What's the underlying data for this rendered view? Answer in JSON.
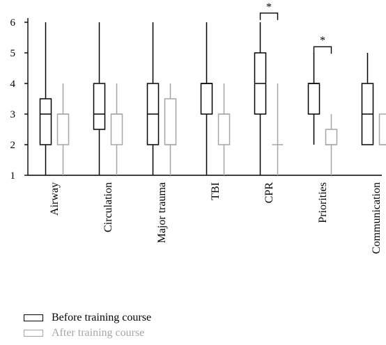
{
  "chart_data": {
    "type": "boxplot",
    "title": "",
    "xlabel": "",
    "ylabel": "",
    "ylim": [
      1,
      6
    ],
    "yticks": [
      1,
      2,
      3,
      4,
      5,
      6
    ],
    "categories": [
      "Airway",
      "Circulation",
      "Major trauma",
      "TBI",
      "CPR",
      "Priorities",
      "Communication"
    ],
    "series": [
      {
        "name": "Before training course",
        "color": "#000000",
        "boxes": [
          {
            "min": 1,
            "q1": 2,
            "median": 3,
            "q3": 3.5,
            "max": 6
          },
          {
            "min": 1,
            "q1": 2.5,
            "median": 3,
            "q3": 4,
            "max": 6
          },
          {
            "min": 1,
            "q1": 2,
            "median": 3,
            "q3": 4,
            "max": 6
          },
          {
            "min": 1,
            "q1": 3,
            "median": 4,
            "q3": 4,
            "max": 6
          },
          {
            "min": 1,
            "q1": 3,
            "median": 4,
            "q3": 5,
            "max": 6
          },
          {
            "min": 2,
            "q1": 3,
            "median": 4,
            "q3": 4,
            "max": 5
          },
          {
            "min": 2,
            "q1": 2,
            "median": 3,
            "q3": 4,
            "max": 5
          }
        ]
      },
      {
        "name": "After training course",
        "color": "#a6a6a6",
        "boxes": [
          {
            "min": 1,
            "q1": 2,
            "median": 3,
            "q3": 3,
            "max": 4
          },
          {
            "min": 1,
            "q1": 2,
            "median": 3,
            "q3": 3,
            "max": 4
          },
          {
            "min": 1,
            "q1": 2,
            "median": 2,
            "q3": 3.5,
            "max": 4
          },
          {
            "min": 1,
            "q1": 2,
            "median": 3,
            "q3": 3,
            "max": 4
          },
          {
            "min": 1,
            "q1": 2,
            "median": 2,
            "q3": 2,
            "max": 4
          },
          {
            "min": 1,
            "q1": 2,
            "median": 2,
            "q3": 2.5,
            "max": 3
          },
          {
            "min": 2,
            "q1": 2,
            "median": 2,
            "q3": 3,
            "max": 3
          }
        ]
      }
    ],
    "significance": [
      {
        "category": "CPR",
        "label": "*",
        "level": 6.3
      },
      {
        "category": "Priorities",
        "label": "*",
        "level": 5.2
      }
    ],
    "legend_position": "bottom-left"
  }
}
